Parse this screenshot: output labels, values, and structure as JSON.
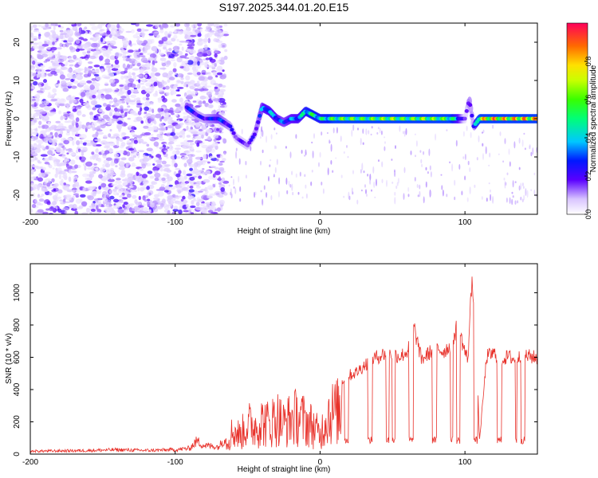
{
  "title": "S197.2025.344.01.20.E15",
  "chart_data": [
    {
      "type": "heatmap",
      "title": "S197.2025.344.01.20.E15",
      "xlabel": "Height of straight line (km)",
      "ylabel": "Frequency (Hz)",
      "xlim": [
        -200,
        150
      ],
      "ylim": [
        -25,
        25
      ],
      "xticks": [
        "-200",
        "-100",
        "0",
        "100"
      ],
      "yticks": [
        "-20",
        "-10",
        "0",
        "10",
        "20"
      ],
      "colorbar": {
        "label": "Normalized spectral amplitude",
        "range": [
          0.0,
          1.0
        ],
        "ticks": [
          "0.0",
          "0.2",
          "0.4",
          "0.6",
          "0.8"
        ]
      },
      "ridge": {
        "description_free": true,
        "x": [
          -92,
          -85,
          -80,
          -70,
          -62,
          -58,
          -54,
          -50,
          -45,
          -40,
          -35,
          -30,
          -25,
          -20,
          -15,
          -10,
          -5,
          0,
          10,
          20,
          30,
          40,
          50,
          60,
          70,
          80,
          90,
          95,
          100,
          103,
          106,
          110,
          120,
          130,
          140,
          150
        ],
        "freq": [
          3,
          1,
          0,
          0,
          -2,
          -5,
          -6,
          -7,
          -4,
          3,
          2,
          0,
          -1,
          0,
          0,
          2,
          1,
          0,
          0,
          0,
          0,
          0,
          0,
          0,
          0,
          0,
          0,
          0,
          0,
          5,
          -2,
          0,
          0,
          0,
          0,
          0
        ],
        "amplitude": [
          0.3,
          0.2,
          0.2,
          0.3,
          0.2,
          0.15,
          0.15,
          0.15,
          0.2,
          0.35,
          0.4,
          0.35,
          0.3,
          0.35,
          0.4,
          0.5,
          0.55,
          0.5,
          0.6,
          0.65,
          0.6,
          0.65,
          0.7,
          0.6,
          0.7,
          0.65,
          0.6,
          0.4,
          0.1,
          0.25,
          0.2,
          0.8,
          0.9,
          0.85,
          0.9,
          0.85
        ]
      }
    },
    {
      "type": "line",
      "xlabel": "Height of straight line (km)",
      "ylabel": "SNR (10 * v/v)",
      "xlim": [
        -200,
        150
      ],
      "ylim": [
        0,
        1180
      ],
      "xticks": [
        "-200",
        "-100",
        "0",
        "100"
      ],
      "yticks": [
        "0",
        "200",
        "400",
        "600",
        "800",
        "1000"
      ],
      "series": [
        {
          "name": "SNR",
          "color": "#e8312a",
          "x": [
            -200,
            -180,
            -160,
            -140,
            -120,
            -100,
            -90,
            -85,
            -80,
            -70,
            -65,
            -60,
            -55,
            -50,
            -45,
            -40,
            -35,
            -30,
            -25,
            -20,
            -15,
            -10,
            -5,
            0,
            5,
            10,
            15,
            20,
            25,
            30,
            35,
            40,
            45,
            50,
            55,
            60,
            65,
            70,
            75,
            80,
            85,
            90,
            95,
            100,
            102,
            105,
            108,
            110,
            115,
            120,
            125,
            130,
            135,
            140,
            145,
            150
          ],
          "y": [
            20,
            22,
            25,
            30,
            25,
            30,
            40,
            90,
            60,
            50,
            120,
            250,
            200,
            320,
            300,
            350,
            320,
            400,
            320,
            380,
            400,
            350,
            300,
            200,
            430,
            450,
            470,
            500,
            520,
            560,
            600,
            620,
            640,
            640,
            620,
            650,
            800,
            600,
            640,
            680,
            650,
            690,
            820,
            650,
            600,
            1150,
            700,
            80,
            620,
            640,
            600,
            620,
            600,
            630,
            620,
            610
          ],
          "dropout_level": 90
        }
      ]
    }
  ]
}
